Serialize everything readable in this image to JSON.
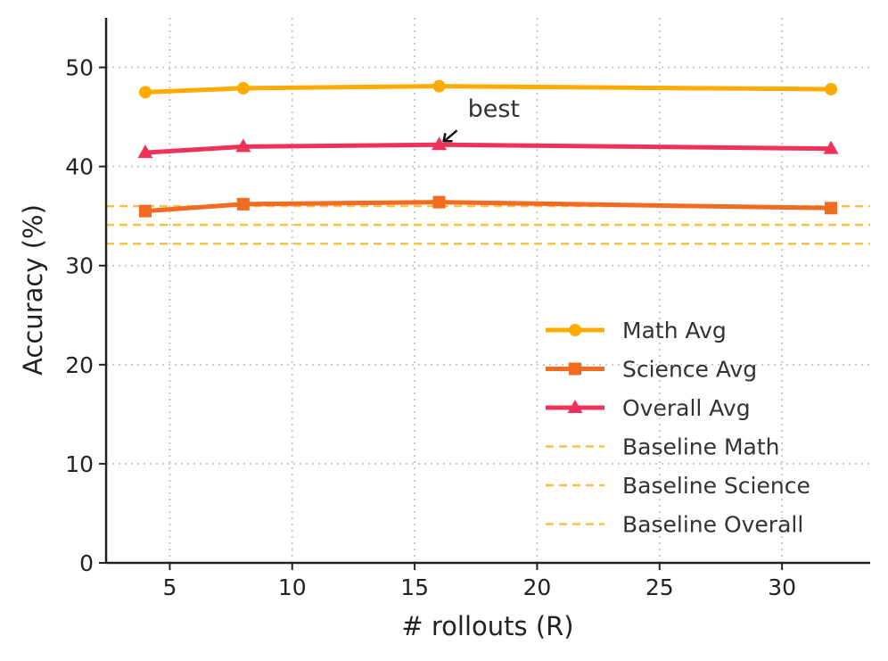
{
  "chart_data": {
    "type": "line",
    "title": "",
    "xlabel": "# rollouts (R)",
    "ylabel": "Accuracy (%)",
    "x": [
      4,
      8,
      16,
      32
    ],
    "xlim": [
      2.4,
      33.6
    ],
    "ylim": [
      0,
      55
    ],
    "xticks": [
      5,
      10,
      15,
      20,
      25,
      30
    ],
    "yticks": [
      0,
      10,
      20,
      30,
      40,
      50
    ],
    "grid": true,
    "legend_position": "lower-right",
    "series": [
      {
        "name": "Math Avg",
        "values": [
          47.5,
          47.9,
          48.1,
          47.8
        ],
        "color": "#FFAA00",
        "marker": "circle"
      },
      {
        "name": "Science Avg",
        "values": [
          35.5,
          36.2,
          36.4,
          35.8
        ],
        "color": "#F26B21",
        "marker": "square"
      },
      {
        "name": "Overall Avg",
        "values": [
          41.4,
          42.0,
          42.2,
          41.8
        ],
        "color": "#F0325A",
        "marker": "triangle"
      }
    ],
    "baselines": [
      {
        "name": "Baseline Math",
        "value": 36.0,
        "color": "#F8C24A"
      },
      {
        "name": "Baseline Science",
        "value": 34.1,
        "color": "#F8C24A"
      },
      {
        "name": "Baseline Overall",
        "value": 32.2,
        "color": "#F8C24A"
      }
    ],
    "annotation": {
      "text": "best",
      "x": 16,
      "y": 42.2
    }
  }
}
